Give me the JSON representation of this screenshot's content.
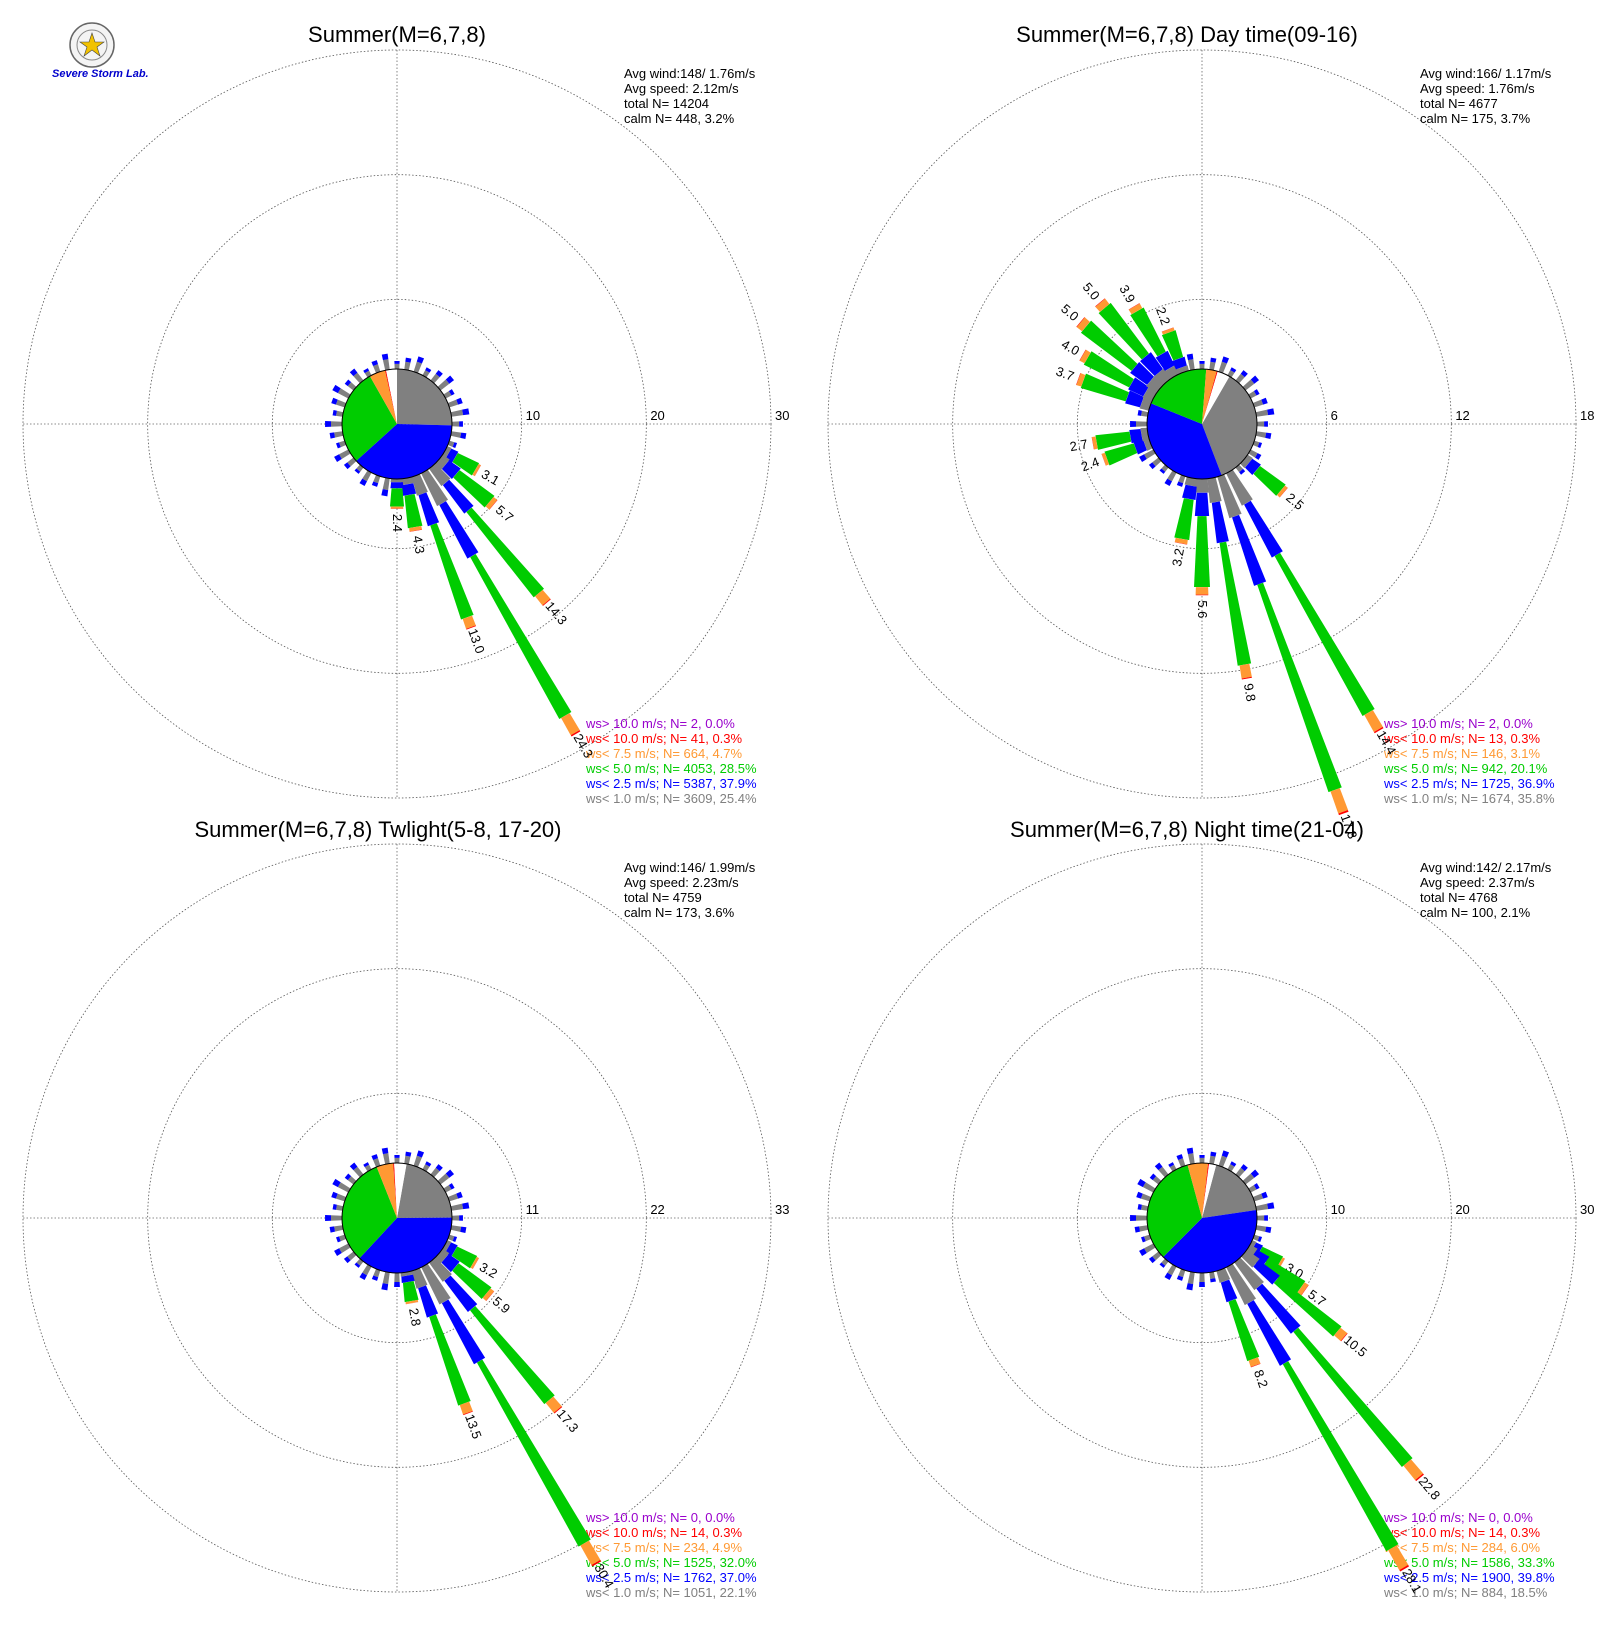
{
  "logo": {
    "text": "Severe Storm Lab."
  },
  "colors": {
    "gt10": "#9900cc",
    "lt10": "#ff0000",
    "lt75": "#ff9933",
    "lt5": "#00cc00",
    "lt25": "#0000ff",
    "lt1": "#808080",
    "calm": "#ffffff"
  },
  "chart_data": [
    {
      "type": "windrose",
      "title": "Summer(M=6,7,8)",
      "stats": [
        "Avg wind:148/ 1.76m/s",
        "Avg speed: 2.12m/s",
        "total N=      14204",
        "calm N=     448,   3.2%"
      ],
      "rmax": 30,
      "ticks": [
        "10",
        "20",
        "30"
      ],
      "legend": [
        {
          "text": "ws> 10.0 m/s; N=      2,  0.0%",
          "color": "gt10"
        },
        {
          "text": "ws< 10.0 m/s; N=     41,  0.3%",
          "color": "lt10"
        },
        {
          "text": "ws<  7.5 m/s; N=    664,  4.7%",
          "color": "lt75"
        },
        {
          "text": "ws<  5.0 m/s; N=  4053, 28.5%",
          "color": "lt5"
        },
        {
          "text": "ws<  2.5 m/s; N=  5387, 37.9%",
          "color": "lt25"
        },
        {
          "text": "ws<  1.0 m/s; N=  3609, 25.4%",
          "color": "lt1"
        }
      ],
      "pie": [
        25.4,
        37.9,
        28.5,
        4.7,
        0.3,
        3.2
      ],
      "pie_start": 60,
      "petals": [
        {
          "dir": 120,
          "value": 3.1,
          "label": "3.1"
        },
        {
          "dir": 130,
          "value": 5.7,
          "label": "5.7"
        },
        {
          "dir": 140,
          "value": 14.3,
          "label": "14.3"
        },
        {
          "dir": 150,
          "value": 24.3,
          "label": "24.3"
        },
        {
          "dir": 160,
          "value": 13.0,
          "label": "13.0"
        },
        {
          "dir": 170,
          "value": 4.3,
          "label": "4.3"
        },
        {
          "dir": 180,
          "value": 2.4,
          "label": "2.4"
        }
      ]
    },
    {
      "type": "windrose",
      "title": "Summer(M=6,7,8) Day time(09-16)",
      "stats": [
        "Avg wind:166/ 1.17m/s",
        "Avg speed: 1.76m/s",
        "total N=       4677",
        "calm N=     175,   3.7%"
      ],
      "rmax": 18,
      "ticks": [
        "6",
        "12",
        "18"
      ],
      "legend": [
        {
          "text": "ws> 10.0 m/s; N=      2,  0.0%",
          "color": "gt10"
        },
        {
          "text": "ws< 10.0 m/s; N=     13,  0.3%",
          "color": "lt10"
        },
        {
          "text": "ws<  7.5 m/s; N=    146,  3.1%",
          "color": "lt75"
        },
        {
          "text": "ws<  5.0 m/s; N=    942, 20.1%",
          "color": "lt5"
        },
        {
          "text": "ws<  2.5 m/s; N=  1725, 36.9%",
          "color": "lt25"
        },
        {
          "text": "ws<  1.0 m/s; N=  1674, 35.8%",
          "color": "lt1"
        }
      ],
      "pie": [
        35.8,
        36.9,
        20.1,
        3.1,
        0.3,
        3.7
      ],
      "pie_start": 90,
      "petals": [
        {
          "dir": 130,
          "value": 2.5,
          "label": "2.5"
        },
        {
          "dir": 150,
          "value": 14.4,
          "label": "14.4"
        },
        {
          "dir": 160,
          "value": 17.3,
          "label": "17.3"
        },
        {
          "dir": 170,
          "value": 9.8,
          "label": "9.8"
        },
        {
          "dir": 180,
          "value": 5.6,
          "label": "5.6"
        },
        {
          "dir": 190,
          "value": 3.2,
          "label": "3.2"
        },
        {
          "dir": 250,
          "value": 2.4,
          "label": "2.4"
        },
        {
          "dir": 260,
          "value": 2.7,
          "label": "2.7"
        },
        {
          "dir": 290,
          "value": 3.7,
          "label": "3.7"
        },
        {
          "dir": 300,
          "value": 4.0,
          "label": "4.0"
        },
        {
          "dir": 310,
          "value": 5.0,
          "label": "5.0"
        },
        {
          "dir": 320,
          "value": 5.0,
          "label": "5.0"
        },
        {
          "dir": 330,
          "value": 3.9,
          "label": "3.9"
        },
        {
          "dir": 340,
          "value": 2.2,
          "label": "2.2"
        }
      ]
    },
    {
      "type": "windrose",
      "title": "Summer(M=6,7,8) Twlight(5-8, 17-20)",
      "stats": [
        "Avg wind:146/ 1.99m/s",
        "Avg speed: 2.23m/s",
        "total N=       4759",
        "calm N=     173,   3.6%"
      ],
      "rmax": 33,
      "ticks": [
        "11",
        "22",
        "33"
      ],
      "legend": [
        {
          "text": "ws> 10.0 m/s; N=      0,  0.0%",
          "color": "gt10"
        },
        {
          "text": "ws< 10.0 m/s; N=     14,  0.3%",
          "color": "lt10"
        },
        {
          "text": "ws<  7.5 m/s; N=    234,  4.9%",
          "color": "lt75"
        },
        {
          "text": "ws<  5.0 m/s; N=  1525, 32.0%",
          "color": "lt5"
        },
        {
          "text": "ws<  2.5 m/s; N=  1762, 37.0%",
          "color": "lt25"
        },
        {
          "text": "ws<  1.0 m/s; N=  1051, 22.1%",
          "color": "lt1"
        }
      ],
      "pie": [
        22.1,
        37.0,
        32.0,
        4.9,
        0.3,
        3.6
      ],
      "pie_start": 70,
      "petals": [
        {
          "dir": 120,
          "value": 3.2,
          "label": "3.2"
        },
        {
          "dir": 130,
          "value": 5.9,
          "label": "5.9"
        },
        {
          "dir": 140,
          "value": 17.3,
          "label": "17.3"
        },
        {
          "dir": 150,
          "value": 30.4,
          "label": "30.4"
        },
        {
          "dir": 160,
          "value": 13.5,
          "label": "13.5"
        },
        {
          "dir": 170,
          "value": 2.8,
          "label": "2.8"
        }
      ]
    },
    {
      "type": "windrose",
      "title": "Summer(M=6,7,8) Night time(21-04)",
      "stats": [
        "Avg wind:142/ 2.17m/s",
        "Avg speed: 2.37m/s",
        "total N=       4768",
        "calm N=     100,   2.1%"
      ],
      "rmax": 30,
      "ticks": [
        "10",
        "20",
        "30"
      ],
      "legend": [
        {
          "text": "ws> 10.0 m/s; N=      0,  0.0%",
          "color": "gt10"
        },
        {
          "text": "ws< 10.0 m/s; N=     14,  0.3%",
          "color": "lt10"
        },
        {
          "text": "ws<  7.5 m/s; N=    284,  6.0%",
          "color": "lt75"
        },
        {
          "text": "ws<  5.0 m/s; N=  1586, 33.3%",
          "color": "lt5"
        },
        {
          "text": "ws<  2.5 m/s; N=  1900, 39.8%",
          "color": "lt25"
        },
        {
          "text": "ws<  1.0 m/s; N=   884, 18.5%",
          "color": "lt1"
        }
      ],
      "pie": [
        18.5,
        39.8,
        33.3,
        6.0,
        0.3,
        2.1
      ],
      "pie_start": 75,
      "petals": [
        {
          "dir": 120,
          "value": 3.0,
          "label": "3.0"
        },
        {
          "dir": 125,
          "value": 5.7,
          "label": "5.7"
        },
        {
          "dir": 130,
          "value": 10.5,
          "label": "10.5"
        },
        {
          "dir": 140,
          "value": 22.8,
          "label": "22.8"
        },
        {
          "dir": 150,
          "value": 28.1,
          "label": "28.1"
        },
        {
          "dir": 160,
          "value": 8.2,
          "label": "8.2"
        }
      ]
    }
  ]
}
